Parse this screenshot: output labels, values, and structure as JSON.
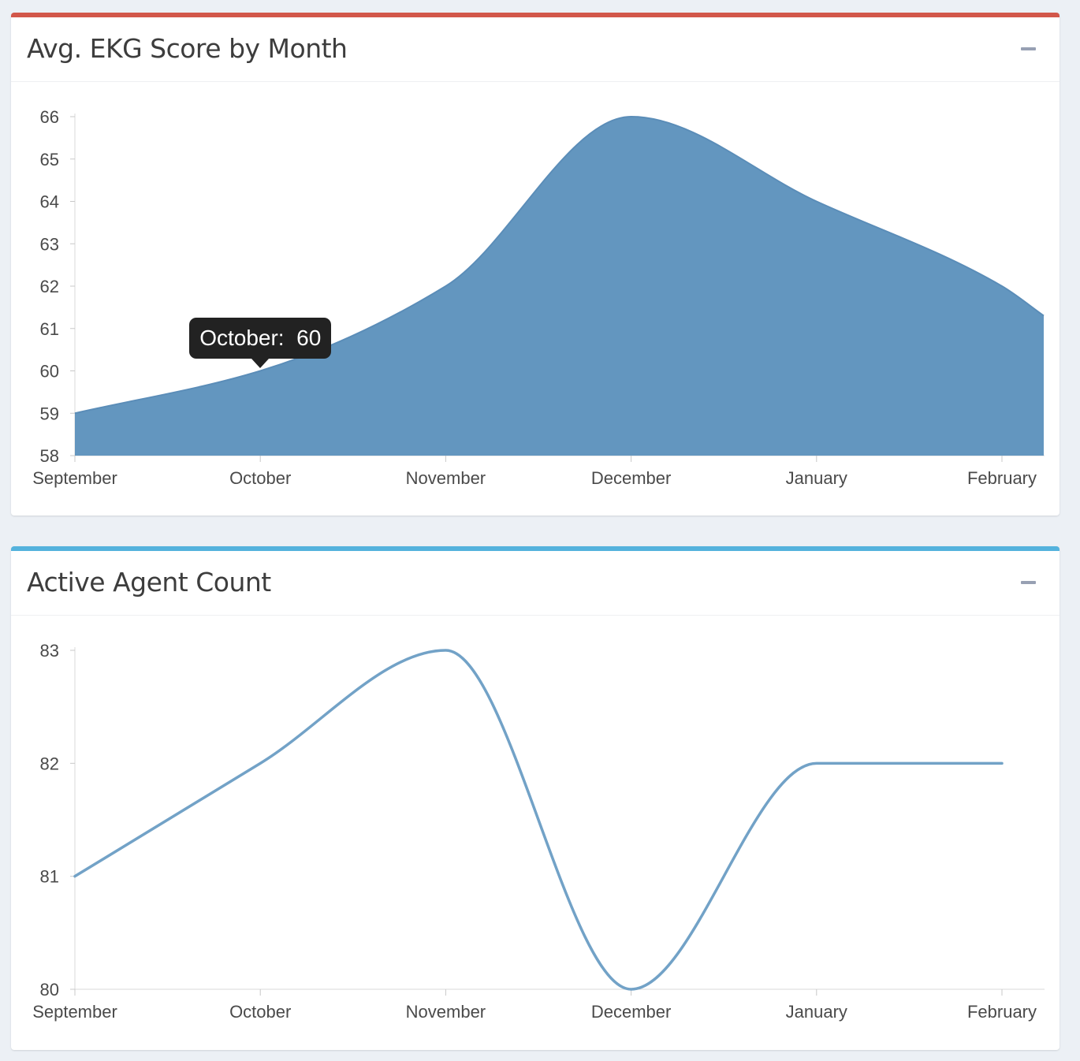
{
  "panels": [
    {
      "title": "Avg. EKG Score by Month",
      "accent_color": "#d2574a",
      "collapse_icon": "minus-icon"
    },
    {
      "title": "Active Agent Count",
      "accent_color": "#54b2dd",
      "collapse_icon": "minus-icon"
    }
  ],
  "tooltip": {
    "label": "October:",
    "value": "60"
  },
  "chart_data": [
    {
      "type": "area",
      "title": "Avg. EKG Score by Month",
      "categories": [
        "September",
        "October",
        "November",
        "December",
        "January",
        "February"
      ],
      "values": [
        59,
        60,
        62,
        66,
        64,
        62
      ],
      "yticks": [
        "58",
        "59",
        "60",
        "61",
        "62",
        "63",
        "64",
        "65",
        "66"
      ],
      "ylim": [
        58,
        66
      ],
      "fill_color": "#6396bf",
      "line_color": "#5b8db8",
      "grid": false
    },
    {
      "type": "line",
      "title": "Active Agent Count",
      "categories": [
        "September",
        "October",
        "November",
        "December",
        "January",
        "February"
      ],
      "values": [
        81,
        82,
        83,
        80,
        82,
        82
      ],
      "yticks": [
        "80",
        "81",
        "82",
        "83"
      ],
      "ylim": [
        80,
        83
      ],
      "line_color": "#72a2c7",
      "grid": false
    }
  ]
}
